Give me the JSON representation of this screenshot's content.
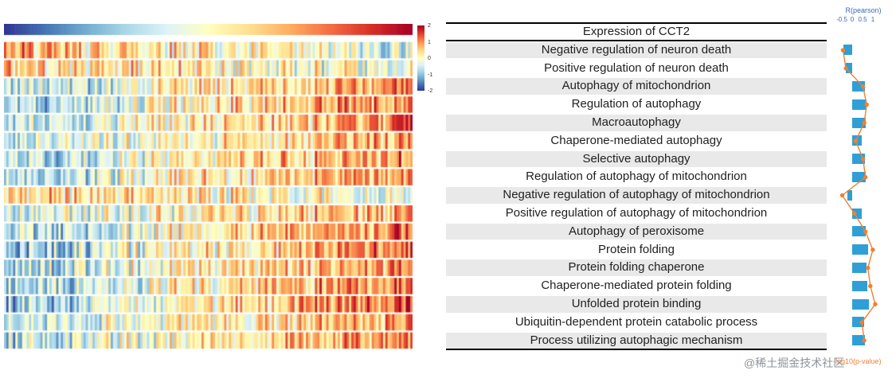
{
  "figure": {
    "watermark": "@稀土掘金技术社区"
  },
  "axes": {
    "r_title": "R(pearson)",
    "r_ticks": [
      "-0.5",
      "0",
      "0.5",
      "1"
    ],
    "p_title": "-log10(p-value)"
  },
  "colors": {
    "bar": "#2f9fd6",
    "line": "#f08030",
    "axis_blue": "#3a6bb5",
    "band_gray": "#e9e9e9"
  },
  "heatmap": {
    "seed": 42,
    "n_samples": 180,
    "legend_ticks": [
      "2",
      "1",
      "0",
      "-1",
      "-2"
    ],
    "palette": [
      "#313695",
      "#4575b4",
      "#74add1",
      "#abd9e9",
      "#e0f3f8",
      "#ffffbf",
      "#fee090",
      "#fdae61",
      "#f46d43",
      "#d73027",
      "#a50026"
    ]
  },
  "chart_data": {
    "type": "heatmap+bar+line",
    "header_label": "Expression of CCT2",
    "colorbar_ticks": [
      2,
      1,
      0,
      -1,
      -2
    ],
    "r_axis": {
      "ticks": [
        -0.5,
        0,
        0.5,
        1
      ],
      "range": [
        -0.6,
        1.15
      ]
    },
    "p_axis": {
      "label": "-log10(p-value)",
      "range": [
        0,
        15
      ]
    },
    "rows": [
      {
        "pathway": "Negative regulation of neuron death",
        "pearson_r": -0.42,
        "neg_log10_p": 0.8
      },
      {
        "pathway": "Positive regulation of neuron death",
        "pearson_r": -0.3,
        "neg_log10_p": 2.0
      },
      {
        "pathway": "Autophagy of mitochondrion",
        "pearson_r": 0.62,
        "neg_log10_p": 9.0
      },
      {
        "pathway": "Regulation of autophagy",
        "pearson_r": 0.68,
        "neg_log10_p": 10.5
      },
      {
        "pathway": "Macroautophagy",
        "pearson_r": 0.64,
        "neg_log10_p": 9.5
      },
      {
        "pathway": "Chaperone-mediated autophagy",
        "pearson_r": 0.48,
        "neg_log10_p": 6.0
      },
      {
        "pathway": "Selective autophagy",
        "pearson_r": 0.6,
        "neg_log10_p": 9.0
      },
      {
        "pathway": "Regulation of autophagy of mitochondrion",
        "pearson_r": 0.65,
        "neg_log10_p": 10.0
      },
      {
        "pathway": "Negative regulation of autophagy of mitochondrion",
        "pearson_r": -0.22,
        "neg_log10_p": 0.5
      },
      {
        "pathway": "Positive regulation of autophagy of mitochondrion",
        "pearson_r": 0.45,
        "neg_log10_p": 5.5
      },
      {
        "pathway": "Autophagy of peroxisome",
        "pearson_r": 0.66,
        "neg_log10_p": 10.0
      },
      {
        "pathway": "Protein folding",
        "pearson_r": 0.78,
        "neg_log10_p": 13.0
      },
      {
        "pathway": "Protein folding chaperone",
        "pearson_r": 0.7,
        "neg_log10_p": 11.0
      },
      {
        "pathway": "Chaperone-mediated protein folding",
        "pearson_r": 0.74,
        "neg_log10_p": 12.0
      },
      {
        "pathway": "Unfolded protein binding",
        "pearson_r": 0.82,
        "neg_log10_p": 14.0
      },
      {
        "pathway": "Ubiquitin-dependent protein catabolic process",
        "pearson_r": 0.58,
        "neg_log10_p": 8.5
      },
      {
        "pathway": "Process utilizing autophagic mechanism",
        "pearson_r": 0.63,
        "neg_log10_p": 9.5
      }
    ]
  }
}
